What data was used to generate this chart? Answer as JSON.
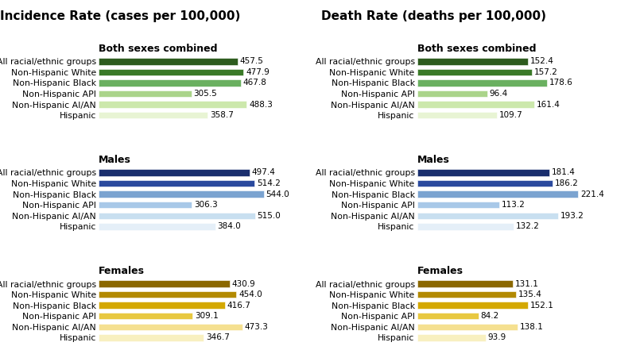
{
  "left_title": "Incidence Rate (cases per 100,000)",
  "right_title": "Death Rate (deaths per 100,000)",
  "categories": [
    "All racial/ethnic groups",
    "Non-Hispanic White",
    "Non-Hispanic Black",
    "Non-Hispanic API",
    "Non-Hispanic AI/AN",
    "Hispanic"
  ],
  "sections": [
    "Both sexes combined",
    "Males",
    "Females"
  ],
  "incidence": {
    "Both sexes combined": [
      457.5,
      477.9,
      467.8,
      305.5,
      488.3,
      358.7
    ],
    "Males": [
      497.4,
      514.2,
      544.0,
      306.3,
      515.0,
      384.0
    ],
    "Females": [
      430.9,
      454.0,
      416.7,
      309.1,
      473.3,
      346.7
    ]
  },
  "death": {
    "Both sexes combined": [
      152.4,
      157.2,
      178.6,
      96.4,
      161.4,
      109.7
    ],
    "Males": [
      181.4,
      186.2,
      221.4,
      113.2,
      193.2,
      132.2
    ],
    "Females": [
      131.1,
      135.4,
      152.1,
      84.2,
      138.1,
      93.9
    ]
  },
  "colors": {
    "incidence": {
      "Both sexes combined": [
        "#2d5c1e",
        "#3a7a28",
        "#6ab060",
        "#aad48a",
        "#cce8ac",
        "#e8f4d4"
      ],
      "Males": [
        "#1a2f6e",
        "#2b4a9e",
        "#7ba3d0",
        "#a8c8e8",
        "#c8dff0",
        "#e5eff8"
      ],
      "Females": [
        "#8b6800",
        "#b38a00",
        "#d4a800",
        "#e8c840",
        "#f5e090",
        "#f8f0c0"
      ]
    },
    "death": {
      "Both sexes combined": [
        "#2d5c1e",
        "#3a7a28",
        "#6ab060",
        "#aad48a",
        "#cce8ac",
        "#e8f4d4"
      ],
      "Males": [
        "#1a2f6e",
        "#2b4a9e",
        "#7ba3d0",
        "#a8c8e8",
        "#c8dff0",
        "#e5eff8"
      ],
      "Females": [
        "#8b6800",
        "#b38a00",
        "#d4a800",
        "#e8c840",
        "#f5e090",
        "#f8f0c0"
      ]
    }
  },
  "label_fontsize": 7.8,
  "main_title_fontsize": 11,
  "section_fontsize": 9,
  "value_fontsize": 7.5,
  "inc_max": 600,
  "death_max": 250
}
